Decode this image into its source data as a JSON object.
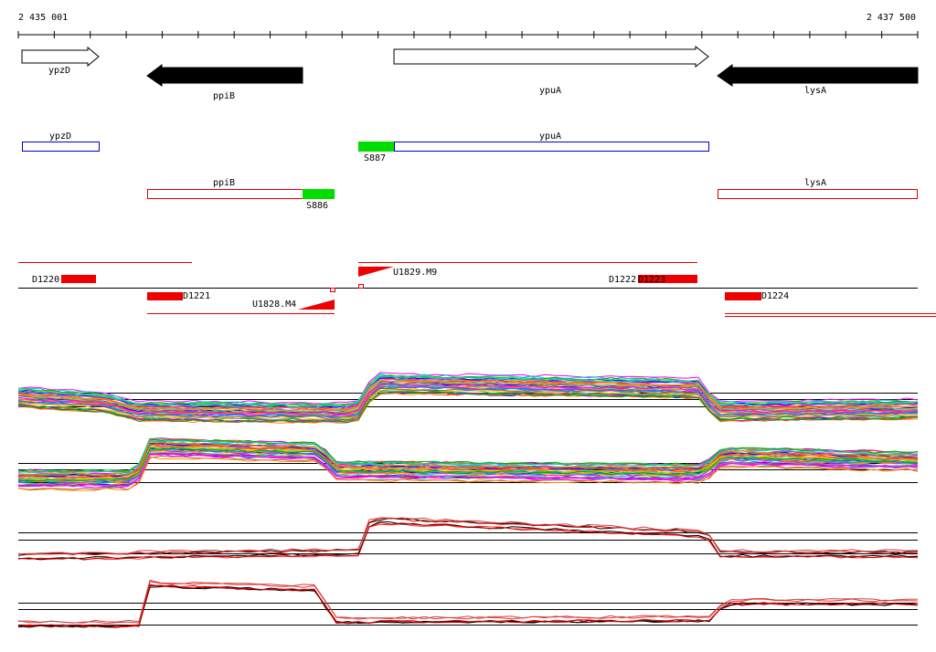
{
  "ruler": {
    "start": "2 435 001",
    "end": "2 437 500"
  },
  "genes": [
    {
      "label": "ypzD"
    },
    {
      "label": "ppiB"
    },
    {
      "label": "ypuA"
    },
    {
      "label": "lysA"
    }
  ],
  "operons": [
    {
      "label": "ypzD"
    },
    {
      "label": "ypuA"
    },
    {
      "label": "ppiB"
    },
    {
      "label": "lysA"
    }
  ],
  "segments": [
    {
      "label": "S887"
    },
    {
      "label": "S886"
    }
  ],
  "features": [
    {
      "label": "D1220"
    },
    {
      "label": "D1221"
    },
    {
      "label": "U1828.M4"
    },
    {
      "label": "U1829.M9"
    },
    {
      "label": "D1222"
    },
    {
      "label": "D1223"
    },
    {
      "label": "D1224"
    }
  ]
}
